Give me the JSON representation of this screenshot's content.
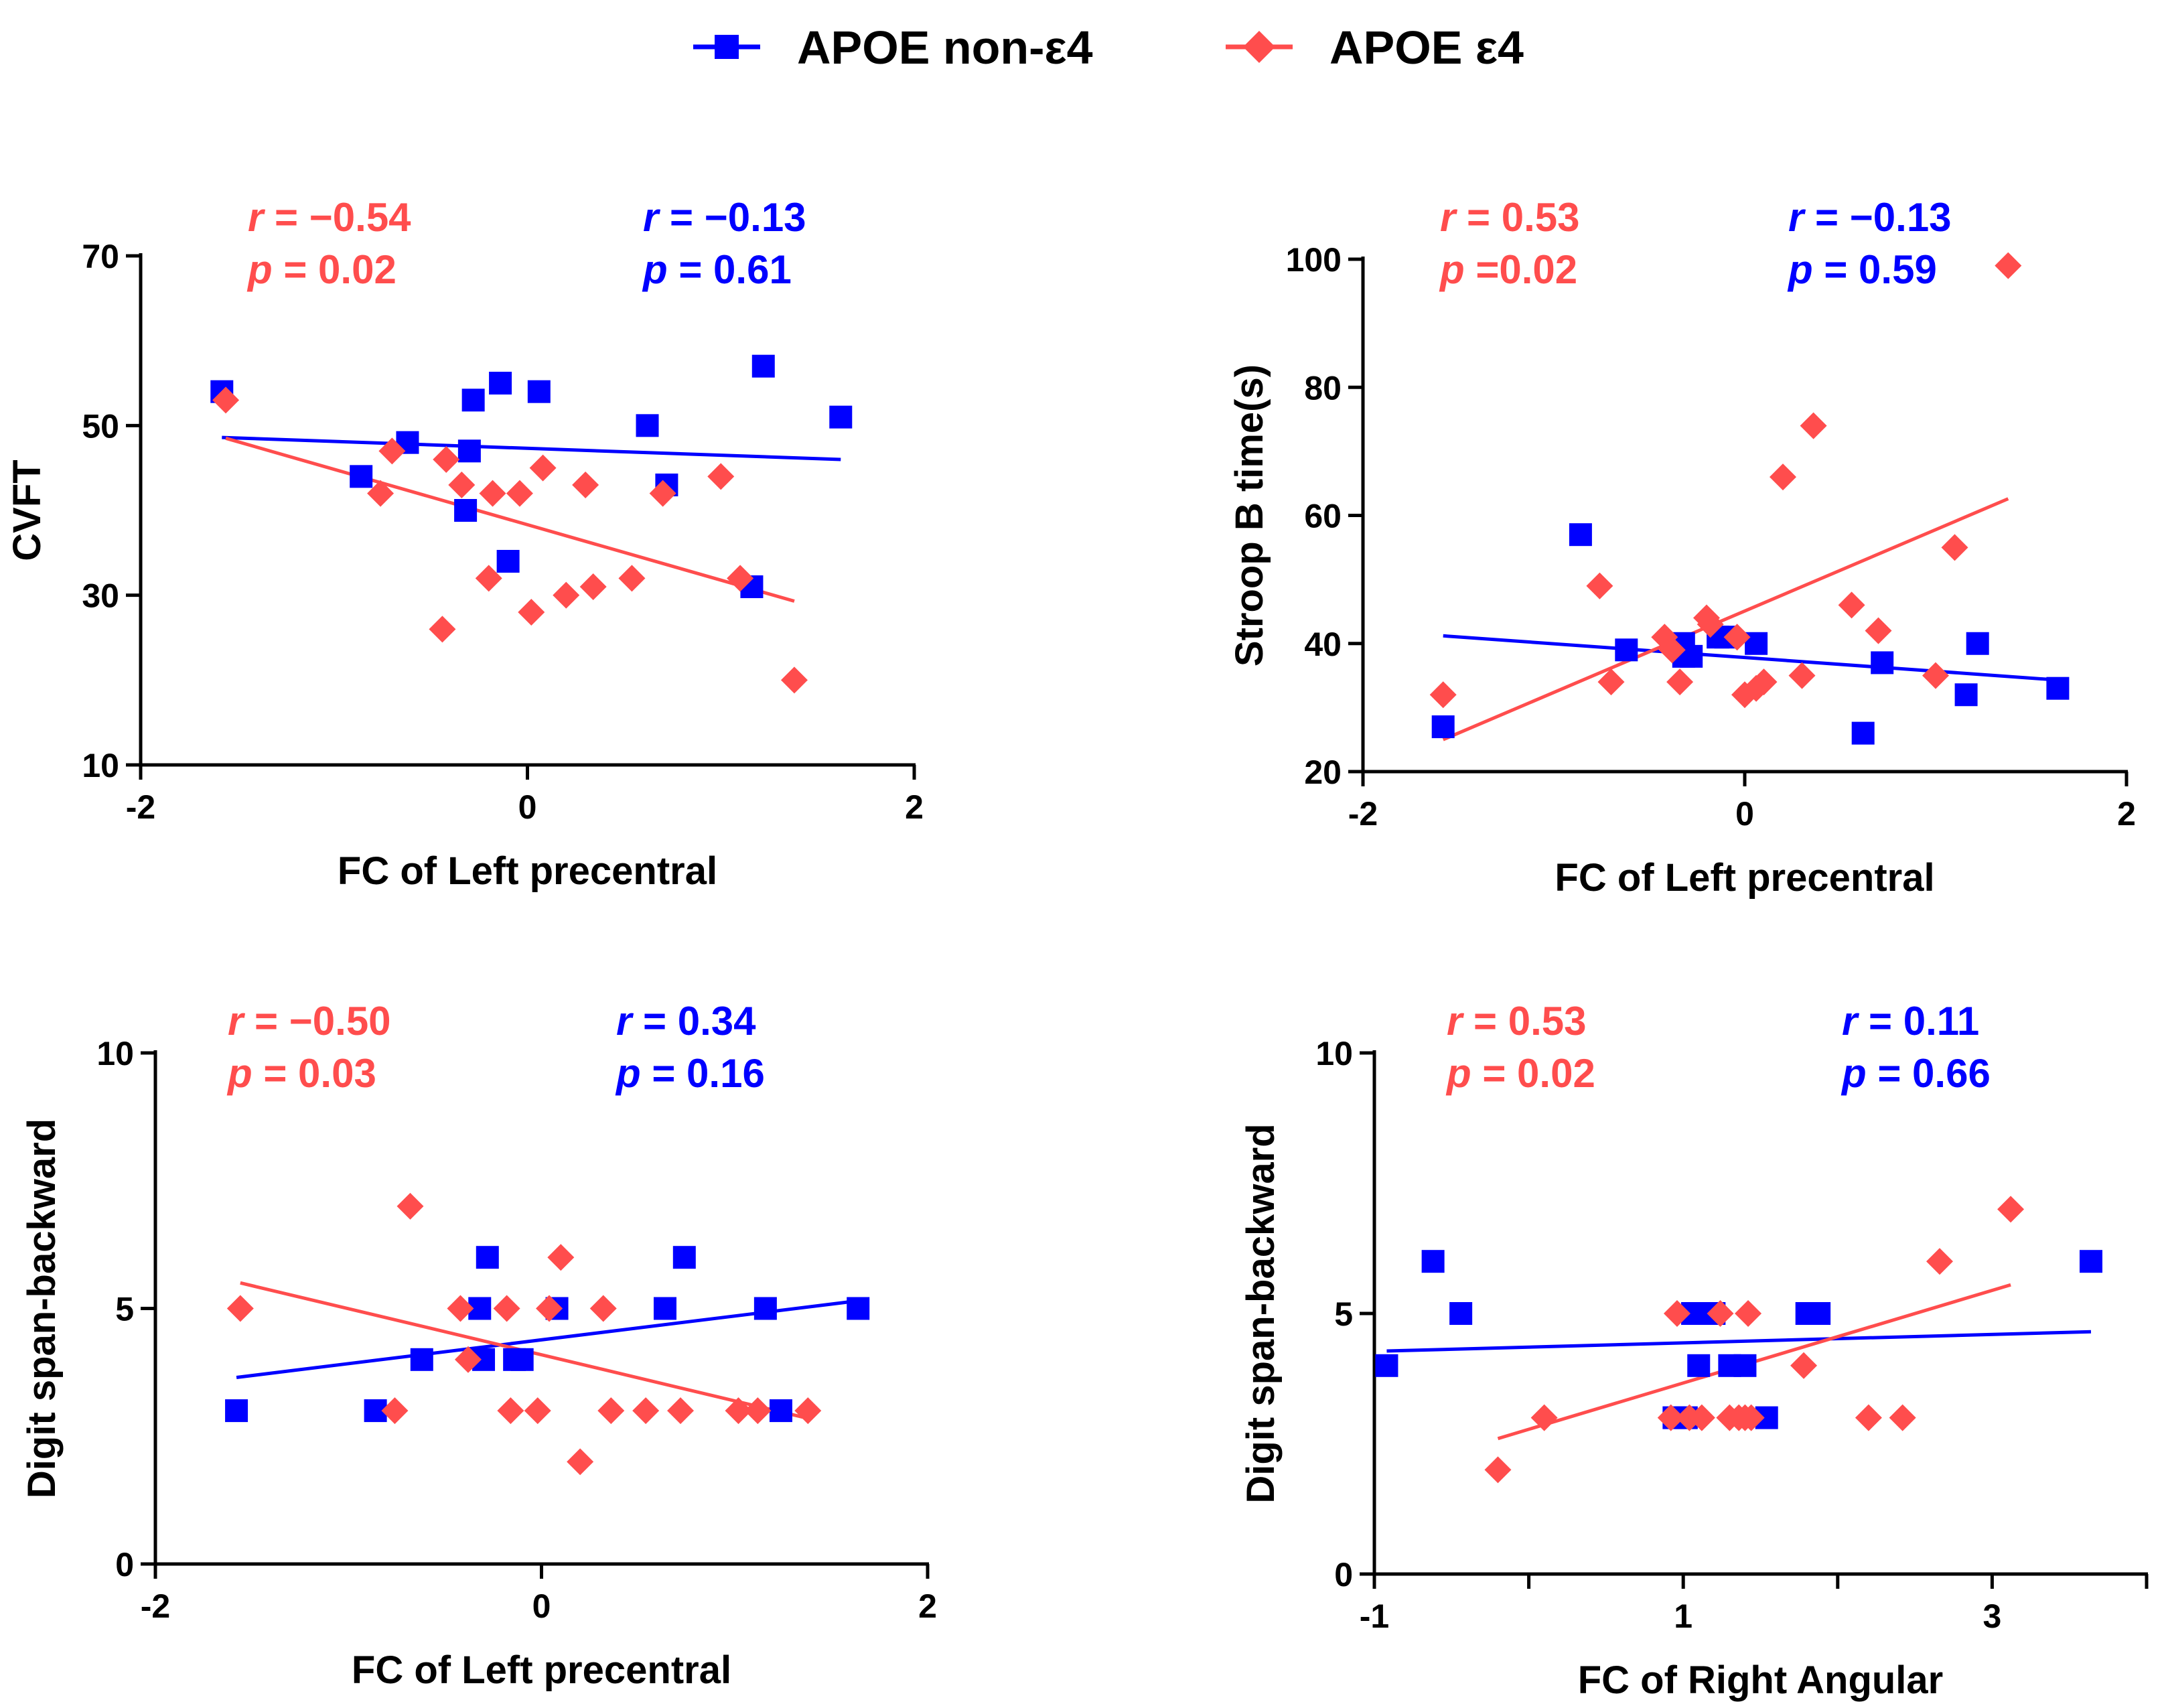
{
  "legend": {
    "items": [
      {
        "label": "APOE non-ε4",
        "color": "#0000ff",
        "marker": "square"
      },
      {
        "label": "APOE ε4",
        "color": "#ff4d4d",
        "marker": "diamond"
      }
    ]
  },
  "colors": {
    "non_e4": "#0000ff",
    "e4": "#ff4d4d"
  },
  "chart_data": [
    {
      "type": "scatter",
      "title": "",
      "xlabel": "FC of Left precentral",
      "ylabel": "CVFT",
      "xlim": [
        -2,
        2
      ],
      "ylim": [
        10,
        70
      ],
      "xticks": [
        "-2",
        "0",
        "2"
      ],
      "yticks": [
        "10",
        "30",
        "50",
        "70"
      ],
      "stats": {
        "e4": {
          "r": "r = −0.54",
          "p": "p = 0.02"
        },
        "non_e4": {
          "r": "r = −0.13",
          "p": "p = 0.61"
        }
      },
      "series": [
        {
          "name": "APOE non-ε4",
          "group": "non_e4",
          "points": [
            [
              -1.58,
              54
            ],
            [
              -0.86,
              44
            ],
            [
              -0.62,
              48
            ],
            [
              -0.3,
              47
            ],
            [
              -0.28,
              53
            ],
            [
              -0.32,
              40
            ],
            [
              -0.14,
              55
            ],
            [
              -0.1,
              34
            ],
            [
              0.06,
              54
            ],
            [
              0.62,
              50
            ],
            [
              0.72,
              43
            ],
            [
              1.16,
              31
            ],
            [
              1.22,
              57
            ],
            [
              1.62,
              51
            ]
          ],
          "fit": [
            [
              -1.58,
              48.6
            ],
            [
              1.62,
              46.0
            ]
          ]
        },
        {
          "name": "APOE ε4",
          "group": "e4",
          "points": [
            [
              -1.56,
              53
            ],
            [
              -0.76,
              42
            ],
            [
              -0.7,
              47
            ],
            [
              -0.42,
              46
            ],
            [
              -0.44,
              26
            ],
            [
              -0.34,
              43
            ],
            [
              -0.18,
              42
            ],
            [
              -0.2,
              32
            ],
            [
              -0.04,
              42
            ],
            [
              0.02,
              28
            ],
            [
              0.08,
              45
            ],
            [
              0.2,
              30
            ],
            [
              0.3,
              43
            ],
            [
              0.34,
              31
            ],
            [
              0.54,
              32
            ],
            [
              0.7,
              42
            ],
            [
              1.0,
              44
            ],
            [
              1.1,
              32
            ],
            [
              1.38,
              20
            ]
          ],
          "fit": [
            [
              -1.56,
              48.5
            ],
            [
              1.38,
              29.3
            ]
          ]
        }
      ]
    },
    {
      "type": "scatter",
      "title": "",
      "xlabel": "FC of Left precentral",
      "ylabel": "Stroop B time(s)",
      "xlim": [
        -2,
        2
      ],
      "ylim": [
        20,
        100
      ],
      "xticks": [
        "-2",
        "0",
        "2"
      ],
      "yticks": [
        "20",
        "40",
        "60",
        "80",
        "100"
      ],
      "stats": {
        "e4": {
          "r": "r = 0.53",
          "p": "p =0.02"
        },
        "non_e4": {
          "r": "r = −0.13",
          "p": "p = 0.59"
        }
      },
      "series": [
        {
          "name": "APOE non-ε4",
          "group": "non_e4",
          "points": [
            [
              -1.58,
              27
            ],
            [
              -0.86,
              57
            ],
            [
              -0.62,
              39
            ],
            [
              -0.32,
              40
            ],
            [
              -0.32,
              38
            ],
            [
              -0.28,
              38
            ],
            [
              -0.14,
              41
            ],
            [
              -0.1,
              41
            ],
            [
              0.06,
              40
            ],
            [
              0.62,
              26
            ],
            [
              0.72,
              37
            ],
            [
              1.16,
              32
            ],
            [
              1.22,
              40
            ],
            [
              1.64,
              33
            ]
          ],
          "fit": [
            [
              -1.58,
              41.2
            ],
            [
              1.64,
              34.3
            ]
          ]
        },
        {
          "name": "APOE ε4",
          "group": "e4",
          "points": [
            [
              -1.58,
              32
            ],
            [
              -0.76,
              49
            ],
            [
              -0.7,
              34
            ],
            [
              -0.42,
              41
            ],
            [
              -0.38,
              39
            ],
            [
              -0.34,
              34
            ],
            [
              -0.18,
              43
            ],
            [
              -0.2,
              44
            ],
            [
              -0.04,
              41
            ],
            [
              0.0,
              32
            ],
            [
              0.06,
              33
            ],
            [
              0.1,
              34
            ],
            [
              0.2,
              66
            ],
            [
              0.3,
              35
            ],
            [
              0.36,
              74
            ],
            [
              0.56,
              46
            ],
            [
              0.7,
              42
            ],
            [
              1.0,
              35
            ],
            [
              1.1,
              55
            ],
            [
              1.38,
              99
            ]
          ],
          "fit": [
            [
              -1.58,
              25.0
            ],
            [
              1.38,
              62.6
            ]
          ]
        }
      ]
    },
    {
      "type": "scatter",
      "title": "",
      "xlabel": "FC of Left precentral",
      "ylabel": "Digit span-backward",
      "xlim": [
        -2,
        2
      ],
      "ylim": [
        0,
        10
      ],
      "xticks": [
        "-2",
        "0",
        "2"
      ],
      "yticks": [
        "0",
        "5",
        "10"
      ],
      "stats": {
        "e4": {
          "r": "r = −0.50",
          "p": "p = 0.03"
        },
        "non_e4": {
          "r": "r = 0.34",
          "p": "p = 0.16"
        }
      },
      "series": [
        {
          "name": "APOE non-ε4",
          "group": "non_e4",
          "points": [
            [
              -1.58,
              3
            ],
            [
              -0.86,
              3
            ],
            [
              -0.62,
              4
            ],
            [
              -0.32,
              5
            ],
            [
              -0.3,
              4
            ],
            [
              -0.28,
              6
            ],
            [
              -0.14,
              4
            ],
            [
              -0.1,
              4
            ],
            [
              0.08,
              5
            ],
            [
              0.64,
              5
            ],
            [
              0.74,
              6
            ],
            [
              1.16,
              5
            ],
            [
              1.24,
              3
            ],
            [
              1.64,
              5
            ]
          ],
          "fit": [
            [
              -1.58,
              3.65
            ],
            [
              1.64,
              5.15
            ]
          ]
        },
        {
          "name": "APOE ε4",
          "group": "e4",
          "points": [
            [
              -1.56,
              5
            ],
            [
              -0.76,
              3
            ],
            [
              -0.68,
              7
            ],
            [
              -0.42,
              5
            ],
            [
              -0.38,
              4
            ],
            [
              -0.18,
              5
            ],
            [
              -0.16,
              3
            ],
            [
              -0.02,
              3
            ],
            [
              0.04,
              5
            ],
            [
              0.1,
              6
            ],
            [
              0.2,
              2
            ],
            [
              0.32,
              5
            ],
            [
              0.36,
              3
            ],
            [
              0.54,
              3
            ],
            [
              0.72,
              3
            ],
            [
              1.02,
              3
            ],
            [
              1.12,
              3
            ],
            [
              1.38,
              3
            ]
          ],
          "fit": [
            [
              -1.56,
              5.5
            ],
            [
              1.38,
              2.85
            ]
          ]
        }
      ]
    },
    {
      "type": "scatter",
      "title": "",
      "xlabel": "FC of Right Angular",
      "ylabel": "Digit span-backward",
      "xlim": [
        -1,
        4
      ],
      "ylim": [
        0,
        10
      ],
      "xticks": [
        "-1",
        "1",
        "3"
      ],
      "xtickvals": [
        -1,
        1,
        3
      ],
      "xminor": [
        0,
        2,
        4
      ],
      "yticks": [
        "0",
        "5",
        "10"
      ],
      "stats": {
        "e4": {
          "r": "r = 0.53",
          "p": "p = 0.02"
        },
        "non_e4": {
          "r": "r = 0.11",
          "p": "p = 0.66"
        }
      },
      "series": [
        {
          "name": "APOE non-ε4",
          "group": "non_e4",
          "points": [
            [
              -0.92,
              4
            ],
            [
              -0.62,
              6
            ],
            [
              -0.44,
              5
            ],
            [
              0.94,
              3
            ],
            [
              1.02,
              3
            ],
            [
              1.06,
              5
            ],
            [
              1.1,
              4
            ],
            [
              1.16,
              5
            ],
            [
              1.2,
              5
            ],
            [
              1.3,
              4
            ],
            [
              1.4,
              4
            ],
            [
              1.54,
              3
            ],
            [
              1.8,
              5
            ],
            [
              1.88,
              5
            ],
            [
              3.64,
              6
            ]
          ],
          "fit": [
            [
              -0.92,
              4.28
            ],
            [
              3.64,
              4.65
            ]
          ]
        },
        {
          "name": "APOE ε4",
          "group": "e4",
          "points": [
            [
              -0.2,
              2
            ],
            [
              0.1,
              3
            ],
            [
              0.92,
              3
            ],
            [
              0.96,
              5
            ],
            [
              1.04,
              3
            ],
            [
              1.12,
              3
            ],
            [
              1.24,
              5
            ],
            [
              1.3,
              3
            ],
            [
              1.36,
              3
            ],
            [
              1.42,
              5
            ],
            [
              1.4,
              3
            ],
            [
              1.44,
              3
            ],
            [
              1.78,
              4
            ],
            [
              2.2,
              3
            ],
            [
              2.42,
              3
            ],
            [
              2.66,
              6
            ],
            [
              3.12,
              7
            ]
          ],
          "fit": [
            [
              -0.2,
              2.6
            ],
            [
              3.12,
              5.55
            ]
          ]
        }
      ]
    }
  ]
}
